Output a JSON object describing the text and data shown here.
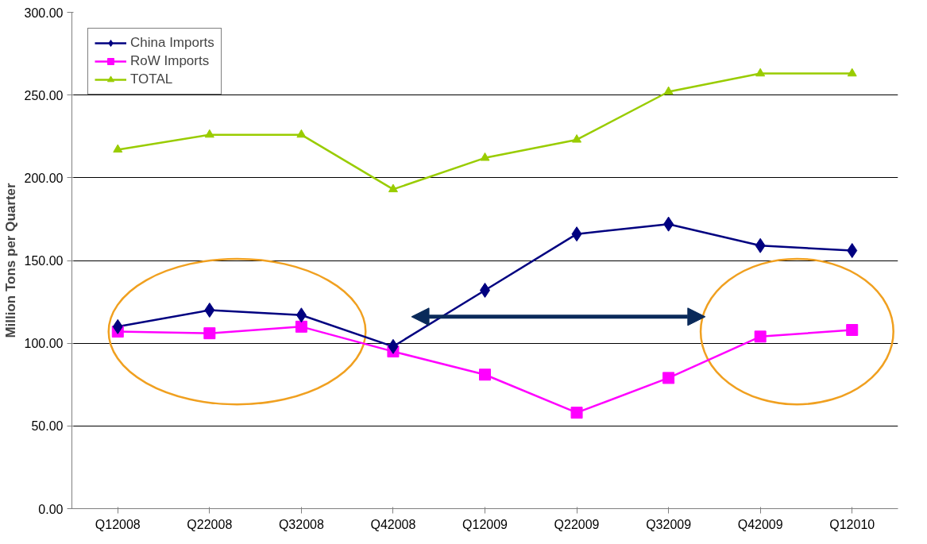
{
  "chart_data": {
    "type": "line",
    "ylabel": "Million Tons per Quarter",
    "categories": [
      "Q12008",
      "Q22008",
      "Q32008",
      "Q42008",
      "Q12009",
      "Q22009",
      "Q32009",
      "Q42009",
      "Q12010"
    ],
    "series": [
      {
        "name": "China Imports",
        "color": "#000080",
        "marker": "diamond",
        "values": [
          110,
          120,
          117,
          98,
          132,
          166,
          172,
          159,
          156
        ]
      },
      {
        "name": "RoW Imports",
        "color": "#ff00ff",
        "marker": "square",
        "values": [
          107,
          106,
          110,
          95,
          81,
          58,
          79,
          104,
          108
        ]
      },
      {
        "name": "TOTAL",
        "color": "#99cc00",
        "marker": "triangle",
        "values": [
          217,
          226,
          226,
          193,
          212,
          223,
          252,
          263,
          263
        ]
      }
    ],
    "ylim": [
      0,
      300
    ],
    "yticks": [
      {
        "value": 0,
        "label": "0.00"
      },
      {
        "value": 50,
        "label": "50.00"
      },
      {
        "value": 100,
        "label": "100.00"
      },
      {
        "value": 150,
        "label": "150.00"
      },
      {
        "value": 200,
        "label": "200.00"
      },
      {
        "value": 250,
        "label": "250.00"
      },
      {
        "value": 300,
        "label": "300.00"
      }
    ],
    "grid": "y",
    "legend": "top left",
    "line_style": "solid"
  }
}
